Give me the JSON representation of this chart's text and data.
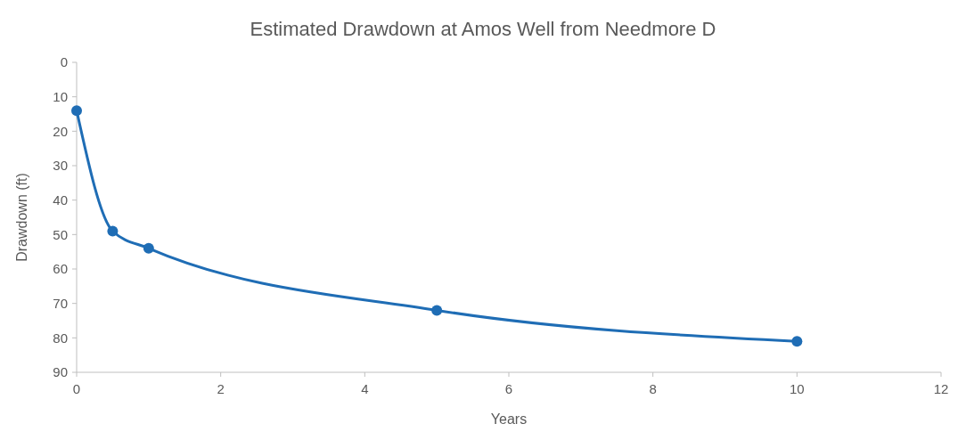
{
  "chart_data": {
    "type": "line",
    "title": "Estimated Drawdown at Amos Well from Needmore D",
    "xlabel": "Years",
    "ylabel": "Drawdown (ft)",
    "x": [
      0,
      0.5,
      1,
      5,
      10
    ],
    "series": [
      {
        "color": "#1f6db5",
        "values": [
          14,
          49,
          54,
          72,
          81
        ]
      }
    ],
    "xlim": [
      0,
      12
    ],
    "xticks": [
      0,
      2,
      4,
      6,
      8,
      10,
      12
    ],
    "ylim": [
      90,
      0
    ],
    "yticks": [
      0,
      10,
      20,
      30,
      40,
      50,
      60,
      70,
      80,
      90
    ],
    "grid": false,
    "marker": "circle",
    "line_style": "solid"
  }
}
